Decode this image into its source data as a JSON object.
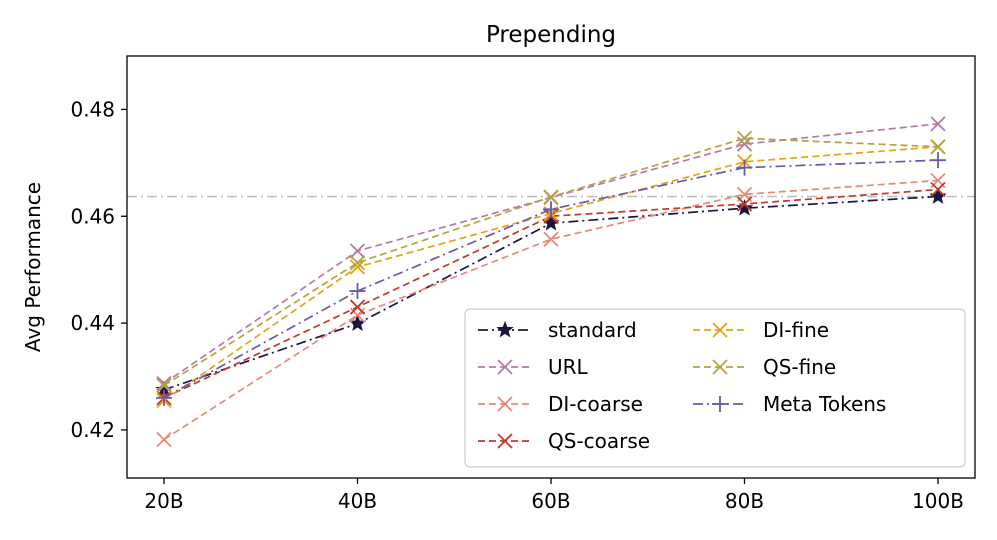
{
  "chart_data": {
    "type": "line",
    "title": "Prepending",
    "xlabel": "",
    "ylabel": "Avg Performance",
    "categories": [
      "20B",
      "40B",
      "60B",
      "80B",
      "100B"
    ],
    "ylim": [
      0.411,
      0.49
    ],
    "yticks": [
      0.42,
      0.44,
      0.46,
      0.48
    ],
    "ytick_labels": [
      "0.42",
      "0.44",
      "0.46",
      "0.48"
    ],
    "reference_line": 0.4637,
    "legend_position": "lower-right",
    "series": [
      {
        "name": "standard",
        "values": [
          0.4275,
          0.4399,
          0.4587,
          0.4615,
          0.4637
        ],
        "color": "#1b1544",
        "marker": "star",
        "dash": "dashdot"
      },
      {
        "name": "URL",
        "values": [
          0.4287,
          0.4535,
          0.4635,
          0.4735,
          0.4773
        ],
        "color": "#b47aa6",
        "marker": "x",
        "dash": "dashed"
      },
      {
        "name": "DI-coarse",
        "values": [
          0.4182,
          0.4415,
          0.4557,
          0.4641,
          0.4667
        ],
        "color": "#e8877a",
        "marker": "x",
        "dash": "dashed"
      },
      {
        "name": "QS-coarse",
        "values": [
          0.426,
          0.443,
          0.46,
          0.4623,
          0.465
        ],
        "color": "#c0392b",
        "marker": "x",
        "dash": "dashed"
      },
      {
        "name": "DI-fine",
        "values": [
          0.4255,
          0.4505,
          0.4605,
          0.4702,
          0.473
        ],
        "color": "#e6a20f",
        "marker": "x",
        "dash": "dashed"
      },
      {
        "name": "QS-fine",
        "values": [
          0.4283,
          0.4513,
          0.4636,
          0.4746,
          0.473
        ],
        "color": "#b5a33c",
        "marker": "x",
        "dash": "dashed"
      },
      {
        "name": "Meta Tokens",
        "values": [
          0.426,
          0.446,
          0.4613,
          0.4691,
          0.4705
        ],
        "color": "#6a5aa6",
        "marker": "plus",
        "dash": "dashdot"
      }
    ]
  }
}
